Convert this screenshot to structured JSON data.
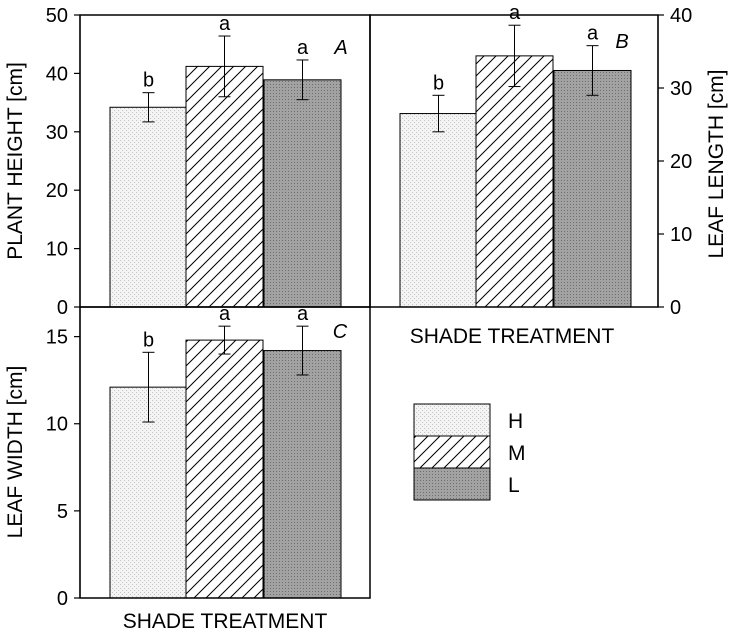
{
  "chart_data": [
    {
      "type": "bar",
      "panel": "A",
      "categories": [
        "H",
        "M",
        "L"
      ],
      "values": [
        34.2,
        41.2,
        38.9
      ],
      "errors": [
        2.5,
        5.2,
        3.4
      ],
      "significance": [
        "b",
        "a",
        "a"
      ],
      "ylabel": "PLANT HEIGHT [cm]",
      "xlabel": "",
      "ylim": [
        0,
        50
      ],
      "yticks": [
        "0",
        "10",
        "20",
        "30",
        "40",
        "50"
      ],
      "grid": false
    },
    {
      "type": "bar",
      "panel": "B",
      "categories": [
        "H",
        "M",
        "L"
      ],
      "values": [
        26.5,
        34.4,
        32.4
      ],
      "errors": [
        2.5,
        4.2,
        3.4
      ],
      "significance": [
        "b",
        "a",
        "a"
      ],
      "ylabel": "LEAF LENGTH [cm]",
      "xlabel": "SHADE TREATMENT",
      "ylim": [
        0,
        40
      ],
      "yticks": [
        "0",
        "10",
        "20",
        "30",
        "40"
      ],
      "grid": false
    },
    {
      "type": "bar",
      "panel": "C",
      "categories": [
        "H",
        "M",
        "L"
      ],
      "values": [
        12.1,
        14.8,
        14.2
      ],
      "errors": [
        2.0,
        0.8,
        1.4
      ],
      "significance": [
        "b",
        "a",
        "a"
      ],
      "ylabel": "LEAF WIDTH [cm]",
      "xlabel": "SHADE TREATMENT",
      "ylim": [
        0,
        16.7
      ],
      "yticks": [
        "0",
        "5",
        "10",
        "15"
      ],
      "grid": false
    }
  ],
  "legend": {
    "placement": "bottom-right",
    "items": [
      {
        "label": "H",
        "fill": "light-dotted"
      },
      {
        "label": "M",
        "fill": "diagonal-hatch"
      },
      {
        "label": "L",
        "fill": "dark-dotted"
      }
    ]
  },
  "colors": {
    "H": "#f4f4f4",
    "M": "#ffffff",
    "L": "#9a9a9a",
    "axis": "#000000"
  }
}
